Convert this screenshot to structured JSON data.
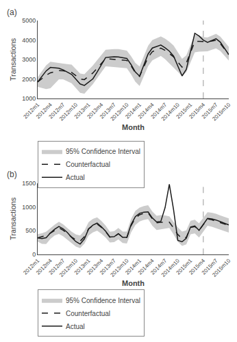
{
  "chart_data": [
    {
      "type": "line",
      "annotations": [
        {
          "text": "(a)"
        }
      ],
      "xlabel": "Month",
      "ylabel": "Transactions",
      "categories": [
        "2012m1",
        null,
        null,
        "2012m4",
        null,
        null,
        "2012m7",
        null,
        null,
        "2012m10",
        null,
        null,
        "2013m1",
        null,
        null,
        "2013m4",
        null,
        null,
        "2013m7",
        null,
        null,
        "2013m10",
        null,
        null,
        "2014m1",
        null,
        null,
        "2014m4",
        null,
        null,
        "2014m7",
        null,
        null,
        "2014m10",
        null,
        null,
        "2015m1",
        null,
        null,
        "2015m4",
        null,
        null,
        "2015m7",
        null,
        null,
        "2015m10"
      ],
      "ylim": [
        1000,
        5000
      ],
      "yticks": [
        1000,
        2000,
        3000,
        4000,
        5000
      ],
      "grid": false,
      "legend": "bottom",
      "vline": {
        "x": "2015m4",
        "color": "#aaaaaa",
        "line_style": "dashed"
      },
      "series": [
        {
          "name": "Actual",
          "color": "#1a1a1a",
          "line_style": "solid",
          "values": [
            1850,
            2133.33,
            2416.67,
            2593.33,
            2574.44,
            2555.56,
            2470,
            2356.67,
            2235.56,
            1990,
            1744.44,
            1670,
            1840,
            2010,
            2353.33,
            2750,
            3102.22,
            3121.11,
            3140,
            3132.22,
            3094.44,
            3056.67,
            2738.89,
            2361.11,
            2150,
            2716.67,
            3283.33,
            3590,
            3665.56,
            3741.11,
            3600,
            3430,
            3180,
            2670,
            2160,
            2494.44,
            3420,
            4345.56,
            4204.44,
            3996.67,
            3877.78,
            3972.22,
            4066.67,
            3892.22,
            3571.11,
            3250
          ]
        },
        {
          "name": "Counterfactual",
          "color": "#1a1a1a",
          "line_style": "dashed",
          "values": [
            1850,
            2020,
            2190,
            2320,
            2376.67,
            2433.33,
            2423.33,
            2385.56,
            2340,
            2170,
            2000,
            1970,
            2140,
            2310,
            2552.22,
            2816.67,
            3047.78,
            3028.89,
            3010,
            2991.11,
            2972.22,
            2953.33,
            2670,
            2330,
            2136.67,
            2627.78,
            3118.89,
            3400,
            3494.44,
            3588.89,
            3466.67,
            3315.56,
            3137.78,
            2873.33,
            2608.89,
            2822.22,
            3370,
            3917.78,
            3932.22,
            3913.33,
            3911.11,
            3948.89,
            3986.67,
            3816.67,
            3533.33,
            3250
          ]
        },
        {
          "name": "95% Confidence Interval",
          "type": "band",
          "color": "#cccccc",
          "upper": [
            2100,
            2402.22,
            2704.44,
            2886.67,
            2848.89,
            2811.11,
            2786.67,
            2767.78,
            2736.67,
            2510,
            2283.33,
            2243.33,
            2470,
            2696.67,
            2966.67,
            3250,
            3502.22,
            3521.11,
            3540,
            3532.22,
            3494.44,
            3456.67,
            3170,
            2830,
            2643.33,
            3172.22,
            3701.11,
            4000,
            4094.44,
            4188.89,
            4066.67,
            3915.56,
            3720,
            3380,
            3040,
            3211.11,
            3740,
            4268.89,
            4228.89,
            4153.33,
            4127.78,
            4222.22,
            4316.67,
            4178.89,
            3914.44,
            3650
          ],
          "lower": [
            1600,
            1543.33,
            1486.67,
            1530,
            1756.67,
            1983.33,
            1983.33,
            1888.89,
            1785.56,
            1540,
            1294.44,
            1251.11,
            1496.67,
            1742.22,
            2045.56,
            2366.67,
            2647.78,
            2628.89,
            2610,
            2591.11,
            2572.22,
            2553.33,
            2238.89,
            1861.11,
            1640,
            2150,
            2660,
            2960,
            3073.33,
            3186.67,
            3016.67,
            2808.89,
            2596.67,
            2370,
            2143.33,
            2350,
            2860,
            3370,
            3400,
            3400,
            3422.22,
            3497.78,
            3573.33,
            3441.11,
            3195.56,
            2950
          ]
        }
      ]
    },
    {
      "type": "line",
      "annotations": [
        {
          "text": "(b)"
        }
      ],
      "xlabel": "Month",
      "ylabel": "Transactions",
      "categories": [
        "2012m1",
        null,
        null,
        "2012m4",
        null,
        null,
        "2012m7",
        null,
        null,
        "2012m10",
        null,
        null,
        "2013m1",
        null,
        null,
        "2013m4",
        null,
        null,
        "2013m7",
        null,
        null,
        "2013m10",
        null,
        null,
        "2014m1",
        null,
        null,
        "2014m4",
        null,
        null,
        "2014m7",
        null,
        null,
        "2014m10",
        null,
        null,
        "2015m1",
        null,
        null,
        "2015m4",
        null,
        null,
        "2015m7",
        null,
        null,
        "2015m10"
      ],
      "ylim": [
        0,
        1500
      ],
      "yticks": [
        0,
        500,
        1000,
        1500
      ],
      "grid": false,
      "legend": "bottom",
      "vline": {
        "x": "2015m4",
        "color": "#aaaaaa",
        "line_style": "dashed"
      },
      "series": [
        {
          "name": "Actual",
          "color": "#1a1a1a",
          "line_style": "solid",
          "values": [
            350,
            335.56,
            352.22,
            453.33,
            531.11,
            588.89,
            539.33,
            462,
            358,
            272,
            220,
            328,
            536,
            616.22,
            658.44,
            583.33,
            488.67,
            367.33,
            374,
            437.56,
            362.22,
            361.33,
            627.11,
            794.67,
            864,
            888.89,
            895.11,
            768,
            683.56,
            695.11,
            983.33,
            1474.44,
            938.89,
            296.67,
            267.78,
            341.11,
            578,
            599.56,
            507.11,
            638.67,
            757.78,
            746.22,
            724,
            689.33,
            654.67,
            620
          ]
        },
        {
          "name": "Counterfactual",
          "color": "#1a1a1a",
          "line_style": "dashed",
          "values": [
            350,
            373.11,
            402.44,
            448.67,
            501.11,
            558.89,
            509.33,
            434.67,
            365.33,
            310,
            281.11,
            373.11,
            540.67,
            606,
            639.33,
            570,
            481.11,
            365.56,
            374,
            437.56,
            362.22,
            357.33,
            605.78,
            764.67,
            834,
            863.33,
            875.11,
            748,
            663.56,
            675.11,
            680,
            680,
            557.78,
            420,
            333.33,
            360,
            568,
            587.11,
            506.22,
            633.33,
            746.67,
            729.33,
            704,
            669.33,
            638.89,
            610
          ]
        },
        {
          "name": "95% Confidence Interval",
          "type": "band",
          "color": "#cccccc",
          "upper": [
            430,
            447.33,
            480.22,
            555.33,
            624.22,
            687.78,
            634.67,
            554.22,
            479.11,
            422,
            398.89,
            500.22,
            679.33,
            746,
            778.44,
            703.33,
            606.22,
            479.11,
            488,
            557.33,
            482.22,
            481.33,
            747.11,
            914.67,
            984,
            1017.78,
            1034.89,
            902,
            813.56,
            825.11,
            820,
            802.67,
            692.44,
            570,
            483.33,
            507.78,
            710,
            730.89,
            655.78,
            778,
            887.78,
            876.22,
            854,
            819.33,
            788.89,
            760
          ],
          "lower": [
            270,
            223.78,
            219.56,
            329.33,
            398.67,
            433.33,
            384,
            313.78,
            232.89,
            168,
            133.33,
            226.67,
            400,
            466,
            500.22,
            436.67,
            356,
            252,
            260,
            317.78,
            242.22,
            233.33,
            464.44,
            617.56,
            692.67,
            727.78,
            744.67,
            606,
            513.56,
            525.11,
            540,
            557.33,
            423.11,
            270,
            183.33,
            212.22,
            426,
            443.33,
            356.67,
            488.67,
            605.56,
            582.44,
            554,
            519.33,
            488.89,
            460
          ]
        }
      ]
    }
  ]
}
